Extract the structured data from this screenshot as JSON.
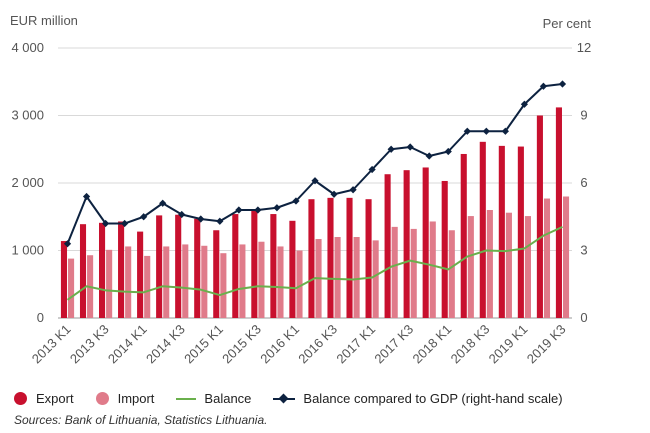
{
  "chart_data": {
    "type": "bar",
    "left_unit": "EUR million",
    "right_unit": "Per cent",
    "categories": [
      "2013 K1",
      "2013 K2",
      "2013 K3",
      "2013 K4",
      "2014 K1",
      "2014 K2",
      "2014 K3",
      "2014 K4",
      "2015 K1",
      "2015 K2",
      "2015 K3",
      "2015 K4",
      "2016 K1",
      "2016 K2",
      "2016 K3",
      "2016 K4",
      "2017 K1",
      "2017 K2",
      "2017 K3",
      "2017 K4",
      "2018 K1",
      "2018 K2",
      "2018 K3",
      "2018 K4",
      "2019 K1",
      "2019 K2",
      "2019 K3"
    ],
    "x_tick_labels": [
      "2013 K1",
      "2013 K3",
      "2014 K1",
      "2014 K3",
      "2015 K1",
      "2015 K3",
      "2016 K1",
      "2016 K3",
      "2017 K1",
      "2017 K3",
      "2018 K1",
      "2018 K3",
      "2019 K1",
      "2019 K3"
    ],
    "y_left": {
      "ylim": [
        0,
        4000
      ],
      "ticks": [
        "0",
        "1 000",
        "2 000",
        "3 000",
        "4 000"
      ]
    },
    "y_right": {
      "ylim": [
        0,
        12
      ],
      "ticks": [
        "0",
        "3",
        "6",
        "9",
        "12"
      ]
    },
    "grid": "horizontal",
    "legend_position": "bottom",
    "series": [
      {
        "name": "Export",
        "kind": "bar",
        "axis": "left",
        "color": "#c8102e",
        "values": [
          1140,
          1390,
          1410,
          1430,
          1280,
          1520,
          1530,
          1470,
          1300,
          1540,
          1600,
          1540,
          1440,
          1760,
          1780,
          1780,
          1760,
          2130,
          2190,
          2230,
          2030,
          2430,
          2610,
          2550,
          2540,
          3000,
          3120
        ]
      },
      {
        "name": "Import",
        "kind": "bar",
        "axis": "left",
        "color": "#e07b8a",
        "values": [
          880,
          930,
          1010,
          1060,
          920,
          1060,
          1090,
          1070,
          960,
          1090,
          1130,
          1060,
          1000,
          1170,
          1200,
          1200,
          1150,
          1350,
          1320,
          1430,
          1300,
          1510,
          1600,
          1560,
          1510,
          1770,
          1800
        ]
      },
      {
        "name": "Balance",
        "kind": "line",
        "axis": "left",
        "color": "#6ab04c",
        "values": [
          270,
          470,
          410,
          390,
          380,
          470,
          450,
          420,
          340,
          430,
          470,
          460,
          440,
          590,
          580,
          570,
          600,
          760,
          850,
          790,
          720,
          910,
          1000,
          990,
          1030,
          1220,
          1350
        ]
      },
      {
        "name": "Balance compared to GDP (right-hand scale)",
        "kind": "line-marker",
        "axis": "right",
        "color": "#0d2240",
        "values": [
          3.3,
          5.4,
          4.2,
          4.2,
          4.5,
          5.1,
          4.6,
          4.4,
          4.3,
          4.8,
          4.8,
          4.9,
          5.2,
          6.1,
          5.5,
          5.7,
          6.6,
          7.5,
          7.6,
          7.2,
          7.4,
          8.3,
          8.3,
          8.3,
          9.5,
          10.3,
          10.4
        ]
      }
    ]
  },
  "legend": {
    "export": "Export",
    "import": "Import",
    "balance": "Balance",
    "balance_gdp": "Balance compared to GDP (right-hand scale)"
  },
  "source_note": "Sources: Bank of Lithuania, Statistics Lithuania."
}
